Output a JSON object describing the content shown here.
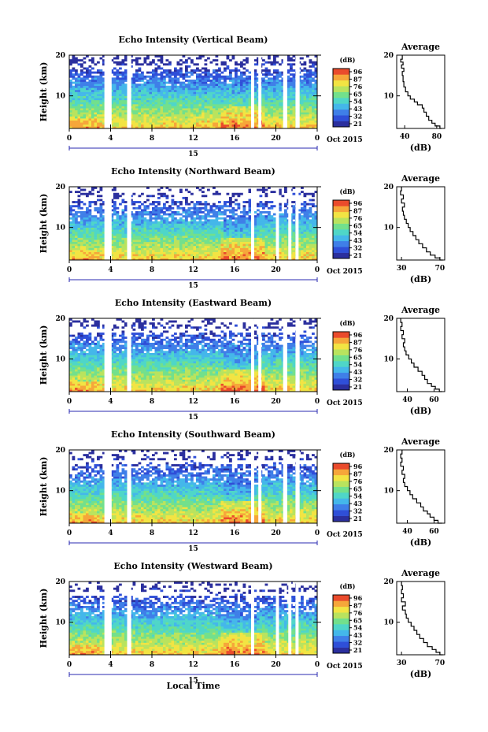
{
  "colorbar_colors": [
    "#2b2f9e",
    "#2f4fd8",
    "#3f7fe8",
    "#44b7ea",
    "#4fd6c8",
    "#72e08c",
    "#b9e35e",
    "#f2e443",
    "#f6a63a",
    "#ea4b2c"
  ],
  "chart_data": [
    {
      "type": "heatmap",
      "title": "Echo Intensity (Vertical Beam)",
      "ylabel": "Height (km)",
      "xlabel": "",
      "x_ticks": [
        "0",
        "4",
        "8",
        "12",
        "16",
        "20",
        "0"
      ],
      "y_ticks": [
        "20",
        "10"
      ],
      "x_range": [
        0,
        24
      ],
      "y_range": [
        2,
        20
      ],
      "date_label": "15",
      "date_suffix": "Oct 2015",
      "colorbar": {
        "label": "(dB)",
        "ticks": [
          "96",
          "87",
          "76",
          "65",
          "54",
          "43",
          "32",
          "21"
        ]
      },
      "average": {
        "title": "Average",
        "xlabel": "(dB)",
        "x_ticks": [
          "40",
          "80"
        ],
        "y_ticks": [
          "20",
          "10"
        ],
        "x_range": [
          30,
          90
        ],
        "profile": [
          [
            86,
            2
          ],
          [
            84,
            2.6
          ],
          [
            78,
            3.3
          ],
          [
            74,
            4
          ],
          [
            70,
            5
          ],
          [
            67,
            6
          ],
          [
            64,
            7
          ],
          [
            62,
            7.8
          ],
          [
            56,
            8.5
          ],
          [
            52,
            9.2
          ],
          [
            47,
            10
          ],
          [
            44,
            11
          ],
          [
            41,
            12.2
          ],
          [
            39,
            13.5
          ],
          [
            38,
            15
          ],
          [
            37,
            16
          ],
          [
            39,
            16.8
          ],
          [
            36,
            17.6
          ],
          [
            38,
            18.3
          ],
          [
            35,
            19
          ],
          [
            37,
            20
          ]
        ]
      },
      "gaps": [
        [
          3.4,
          4.1
        ],
        [
          5.6,
          6.0
        ],
        [
          17.6,
          17.9
        ],
        [
          18.3,
          18.6
        ],
        [
          20.7,
          21.1
        ],
        [
          21.9,
          22.3
        ]
      ]
    },
    {
      "type": "heatmap",
      "title": "Echo Intensity (Northward Beam)",
      "ylabel": "Height (km)",
      "xlabel": "",
      "x_ticks": [
        "0",
        "4",
        "8",
        "12",
        "16",
        "20",
        "0"
      ],
      "y_ticks": [
        "20",
        "10"
      ],
      "x_range": [
        0,
        24
      ],
      "y_range": [
        2,
        20
      ],
      "date_label": "15",
      "date_suffix": "Oct 2015",
      "colorbar": {
        "label": "(dB)",
        "ticks": [
          "96",
          "87",
          "76",
          "65",
          "54",
          "43",
          "32",
          "21"
        ]
      },
      "average": {
        "title": "Average",
        "xlabel": "(dB)",
        "x_ticks": [
          "30",
          "70"
        ],
        "y_ticks": [
          "20",
          "10"
        ],
        "x_range": [
          25,
          75
        ],
        "profile": [
          [
            73,
            2
          ],
          [
            70,
            2.5
          ],
          [
            65,
            3.2
          ],
          [
            60,
            4
          ],
          [
            56,
            5
          ],
          [
            52,
            6
          ],
          [
            48,
            7
          ],
          [
            45,
            8
          ],
          [
            42,
            9
          ],
          [
            39,
            10
          ],
          [
            37,
            11
          ],
          [
            35,
            12
          ],
          [
            33,
            13
          ],
          [
            32,
            14
          ],
          [
            31,
            15
          ],
          [
            33,
            16
          ],
          [
            30,
            17
          ],
          [
            32,
            18
          ],
          [
            29,
            19
          ],
          [
            30,
            20
          ]
        ]
      },
      "gaps": [
        [
          3.4,
          4.1
        ],
        [
          5.6,
          6.0
        ],
        [
          17.6,
          17.9
        ],
        [
          20.0,
          20.3
        ],
        [
          21.2,
          21.5
        ],
        [
          21.9,
          22.2
        ]
      ]
    },
    {
      "type": "heatmap",
      "title": "Echo Intensity (Eastward Beam)",
      "ylabel": "Height (km)",
      "xlabel": "",
      "x_ticks": [
        "0",
        "4",
        "8",
        "12",
        "16",
        "20",
        "0"
      ],
      "y_ticks": [
        "20",
        "10"
      ],
      "x_range": [
        0,
        24
      ],
      "y_range": [
        2,
        20
      ],
      "date_label": "15",
      "date_suffix": "Oct 2015",
      "colorbar": {
        "label": "(dB)",
        "ticks": [
          "96",
          "87",
          "76",
          "65",
          "54",
          "43",
          "32",
          "21"
        ]
      },
      "average": {
        "title": "Average",
        "xlabel": "(dB)",
        "x_ticks": [
          "40",
          "60"
        ],
        "y_ticks": [
          "20",
          "10"
        ],
        "x_range": [
          32,
          68
        ],
        "profile": [
          [
            66,
            2
          ],
          [
            64,
            2.6
          ],
          [
            61,
            3.3
          ],
          [
            58,
            4
          ],
          [
            55,
            5
          ],
          [
            53,
            6
          ],
          [
            51,
            7
          ],
          [
            48,
            8
          ],
          [
            45,
            9
          ],
          [
            43,
            10
          ],
          [
            41,
            11
          ],
          [
            39,
            12
          ],
          [
            38,
            13
          ],
          [
            37,
            14
          ],
          [
            38,
            15
          ],
          [
            36,
            16
          ],
          [
            37,
            17
          ],
          [
            35,
            18
          ],
          [
            36,
            19
          ],
          [
            35,
            20
          ]
        ]
      },
      "gaps": [
        [
          3.4,
          4.1
        ],
        [
          5.6,
          6.0
        ],
        [
          17.6,
          17.9
        ],
        [
          18.3,
          18.6
        ],
        [
          20.7,
          21.1
        ],
        [
          21.9,
          22.3
        ]
      ]
    },
    {
      "type": "heatmap",
      "title": "Echo Intensity (Southward Beam)",
      "ylabel": "Height (km)",
      "xlabel": "",
      "x_ticks": [
        "0",
        "4",
        "8",
        "12",
        "16",
        "20",
        "0"
      ],
      "y_ticks": [
        "20",
        "10"
      ],
      "x_range": [
        0,
        24
      ],
      "y_range": [
        2,
        20
      ],
      "date_label": "15",
      "date_suffix": "Oct 2015",
      "colorbar": {
        "label": "(dB)",
        "ticks": [
          "96",
          "87",
          "76",
          "65",
          "54",
          "43",
          "32",
          "21"
        ]
      },
      "average": {
        "title": "Average",
        "xlabel": "(dB)",
        "x_ticks": [
          "40",
          "60"
        ],
        "y_ticks": [
          "20",
          "10"
        ],
        "x_range": [
          32,
          68
        ],
        "profile": [
          [
            66,
            2
          ],
          [
            63,
            2.7
          ],
          [
            60,
            3.5
          ],
          [
            57,
            4.3
          ],
          [
            55,
            5
          ],
          [
            52,
            6
          ],
          [
            50,
            7
          ],
          [
            47,
            8
          ],
          [
            44,
            9
          ],
          [
            42,
            10
          ],
          [
            40,
            11
          ],
          [
            38,
            12
          ],
          [
            37,
            13
          ],
          [
            38,
            14
          ],
          [
            36,
            15
          ],
          [
            37,
            16
          ],
          [
            35,
            17
          ],
          [
            36,
            18
          ],
          [
            35,
            19
          ],
          [
            36,
            20
          ]
        ]
      },
      "gaps": [
        [
          3.4,
          4.1
        ],
        [
          5.6,
          6.0
        ],
        [
          17.6,
          17.9
        ],
        [
          18.3,
          18.6
        ],
        [
          20.7,
          21.1
        ],
        [
          21.9,
          22.3
        ]
      ]
    },
    {
      "type": "heatmap",
      "title": "Echo Intensity (Westward Beam)",
      "ylabel": "Height (km)",
      "xlabel": "Local Time",
      "x_ticks": [
        "0",
        "4",
        "8",
        "12",
        "16",
        "20",
        "0"
      ],
      "y_ticks": [
        "20",
        "10"
      ],
      "x_range": [
        0,
        24
      ],
      "y_range": [
        2,
        20
      ],
      "date_label": "15",
      "date_suffix": "Oct 2015",
      "colorbar": {
        "label": "(dB)",
        "ticks": [
          "96",
          "87",
          "76",
          "65",
          "54",
          "43",
          "32",
          "21"
        ]
      },
      "average": {
        "title": "Average",
        "xlabel": "(dB)",
        "x_ticks": [
          "30",
          "70"
        ],
        "y_ticks": [
          "20",
          "10"
        ],
        "x_range": [
          25,
          75
        ],
        "profile": [
          [
            73,
            2
          ],
          [
            70,
            2.6
          ],
          [
            66,
            3.3
          ],
          [
            62,
            4
          ],
          [
            57,
            5
          ],
          [
            53,
            6
          ],
          [
            49,
            7
          ],
          [
            46,
            8
          ],
          [
            43,
            9
          ],
          [
            40,
            10
          ],
          [
            37,
            11
          ],
          [
            35,
            12
          ],
          [
            34,
            13
          ],
          [
            31,
            14
          ],
          [
            34,
            15
          ],
          [
            30,
            16
          ],
          [
            32,
            17
          ],
          [
            30,
            18
          ],
          [
            31,
            19
          ],
          [
            30,
            20
          ]
        ]
      },
      "gaps": [
        [
          3.4,
          4.1
        ],
        [
          5.6,
          6.0
        ],
        [
          17.6,
          17.9
        ],
        [
          20.0,
          20.3
        ],
        [
          21.2,
          21.5
        ],
        [
          21.9,
          22.2
        ]
      ]
    }
  ]
}
